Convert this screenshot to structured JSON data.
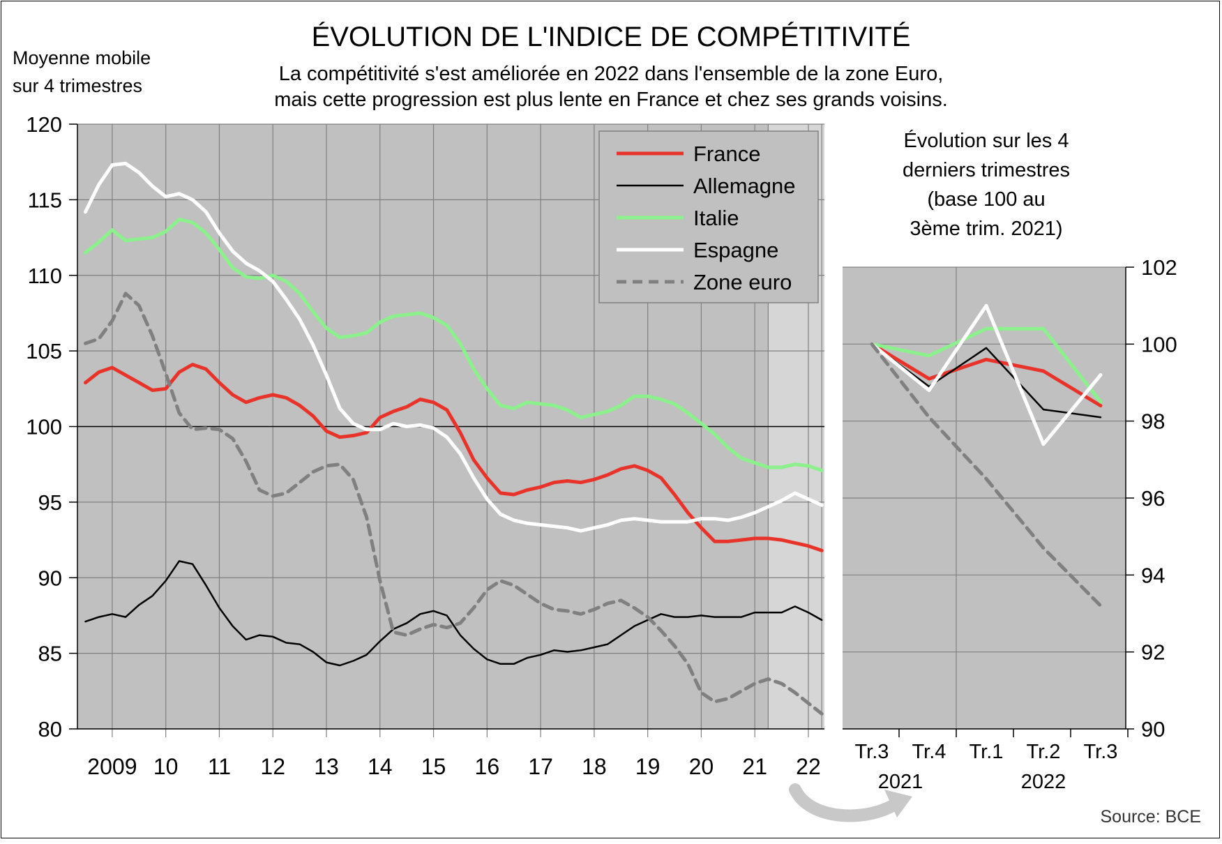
{
  "title": "ÉVOLUTION DE L'INDICE DE COMPÉTITIVITÉ",
  "subtitle_lines": [
    "La compétitivité s'est améliorée en 2022 dans l'ensemble de la zone Euro,",
    "mais cette progression est plus lente en France et chez ses grands voisins."
  ],
  "source": "Source: BCE",
  "chart_data": [
    {
      "type": "line",
      "ylabel_lines": [
        "Moyenne mobile",
        "sur 4 trimestres"
      ],
      "ylim": [
        80,
        120
      ],
      "yticks": [
        80,
        85,
        90,
        95,
        100,
        105,
        110,
        115,
        120
      ],
      "xlim": [
        2008.35,
        2022.3
      ],
      "year_ticks": [
        2009,
        2010,
        2011,
        2012,
        2013,
        2014,
        2015,
        2016,
        2017,
        2018,
        2019,
        2020,
        2021,
        2022
      ],
      "year_labels": [
        "2009",
        "10",
        "11",
        "12",
        "13",
        "14",
        "15",
        "16",
        "17",
        "18",
        "19",
        "20",
        "21",
        "22"
      ],
      "reference_line": 100,
      "grid": true,
      "legend_position": "top-right",
      "series": [
        {
          "name": "France",
          "color": "#e8332b",
          "style": "solid",
          "x": [
            2008.5,
            2008.75,
            2009.0,
            2009.25,
            2009.5,
            2009.75,
            2010.0,
            2010.25,
            2010.5,
            2010.75,
            2011.0,
            2011.25,
            2011.5,
            2011.75,
            2012.0,
            2012.25,
            2012.5,
            2012.75,
            2013.0,
            2013.25,
            2013.5,
            2013.75,
            2014.0,
            2014.25,
            2014.5,
            2014.75,
            2015.0,
            2015.25,
            2015.5,
            2015.75,
            2016.0,
            2016.25,
            2016.5,
            2016.75,
            2017.0,
            2017.25,
            2017.5,
            2017.75,
            2018.0,
            2018.25,
            2018.5,
            2018.75,
            2019.0,
            2019.25,
            2019.5,
            2019.75,
            2020.0,
            2020.25,
            2020.5,
            2020.75,
            2021.0,
            2021.25,
            2021.5,
            2021.75,
            2022.0,
            2022.25
          ],
          "y": [
            102.9,
            103.6,
            103.9,
            103.4,
            102.9,
            102.4,
            102.5,
            103.6,
            104.1,
            103.8,
            102.9,
            102.1,
            101.6,
            101.9,
            102.1,
            101.9,
            101.4,
            100.7,
            99.7,
            99.3,
            99.4,
            99.6,
            100.6,
            101.0,
            101.3,
            101.8,
            101.6,
            101.1,
            99.6,
            97.8,
            96.6,
            95.6,
            95.5,
            95.8,
            96.0,
            96.3,
            96.4,
            96.3,
            96.5,
            96.8,
            97.2,
            97.4,
            97.1,
            96.6,
            95.5,
            94.3,
            93.3,
            92.4,
            92.4,
            92.5,
            92.6,
            92.6,
            92.5,
            92.3,
            92.1,
            91.8
          ]
        },
        {
          "name": "Allemagne",
          "color": "#000000",
          "style": "solid",
          "x": [
            2008.5,
            2008.75,
            2009.0,
            2009.25,
            2009.5,
            2009.75,
            2010.0,
            2010.25,
            2010.5,
            2010.75,
            2011.0,
            2011.25,
            2011.5,
            2011.75,
            2012.0,
            2012.25,
            2012.5,
            2012.75,
            2013.0,
            2013.25,
            2013.5,
            2013.75,
            2014.0,
            2014.25,
            2014.5,
            2014.75,
            2015.0,
            2015.25,
            2015.5,
            2015.75,
            2016.0,
            2016.25,
            2016.5,
            2016.75,
            2017.0,
            2017.25,
            2017.5,
            2017.75,
            2018.0,
            2018.25,
            2018.5,
            2018.75,
            2019.0,
            2019.25,
            2019.5,
            2019.75,
            2020.0,
            2020.25,
            2020.5,
            2020.75,
            2021.0,
            2021.25,
            2021.5,
            2021.75,
            2022.0,
            2022.25
          ],
          "y": [
            87.1,
            87.4,
            87.6,
            87.4,
            88.2,
            88.8,
            89.8,
            91.1,
            90.9,
            89.5,
            88.0,
            86.8,
            85.9,
            86.2,
            86.1,
            85.7,
            85.6,
            85.1,
            84.4,
            84.2,
            84.5,
            84.9,
            85.8,
            86.6,
            87.0,
            87.6,
            87.8,
            87.5,
            86.2,
            85.3,
            84.6,
            84.3,
            84.3,
            84.7,
            84.9,
            85.2,
            85.1,
            85.2,
            85.4,
            85.6,
            86.2,
            86.8,
            87.2,
            87.6,
            87.4,
            87.4,
            87.5,
            87.4,
            87.4,
            87.4,
            87.7,
            87.7,
            87.7,
            88.1,
            87.7,
            87.2
          ]
        },
        {
          "name": "Italie",
          "color": "#8cf08c",
          "style": "solid",
          "x": [
            2008.5,
            2008.75,
            2009.0,
            2009.25,
            2009.5,
            2009.75,
            2010.0,
            2010.25,
            2010.5,
            2010.75,
            2011.0,
            2011.25,
            2011.5,
            2011.75,
            2012.0,
            2012.25,
            2012.5,
            2012.75,
            2013.0,
            2013.25,
            2013.5,
            2013.75,
            2014.0,
            2014.25,
            2014.5,
            2014.75,
            2015.0,
            2015.25,
            2015.5,
            2015.75,
            2016.0,
            2016.25,
            2016.5,
            2016.75,
            2017.0,
            2017.25,
            2017.5,
            2017.75,
            2018.0,
            2018.25,
            2018.5,
            2018.75,
            2019.0,
            2019.25,
            2019.5,
            2019.75,
            2020.0,
            2020.25,
            2020.5,
            2020.75,
            2021.0,
            2021.25,
            2021.5,
            2021.75,
            2022.0,
            2022.25
          ],
          "y": [
            111.5,
            112.2,
            113.0,
            112.3,
            112.4,
            112.5,
            112.9,
            113.7,
            113.5,
            112.8,
            111.7,
            110.5,
            109.9,
            109.8,
            110.0,
            109.6,
            108.8,
            107.6,
            106.5,
            105.9,
            106.0,
            106.2,
            106.9,
            107.3,
            107.4,
            107.5,
            107.2,
            106.7,
            105.5,
            103.8,
            102.5,
            101.4,
            101.2,
            101.6,
            101.5,
            101.4,
            101.1,
            100.6,
            100.8,
            101.0,
            101.4,
            102.0,
            102.0,
            101.8,
            101.5,
            100.9,
            100.2,
            99.5,
            98.6,
            97.9,
            97.6,
            97.3,
            97.3,
            97.5,
            97.4,
            97.1
          ]
        },
        {
          "name": "Espagne",
          "color": "#ffffff",
          "style": "solid",
          "x": [
            2008.5,
            2008.75,
            2009.0,
            2009.25,
            2009.5,
            2009.75,
            2010.0,
            2010.25,
            2010.5,
            2010.75,
            2011.0,
            2011.25,
            2011.5,
            2011.75,
            2012.0,
            2012.25,
            2012.5,
            2012.75,
            2013.0,
            2013.25,
            2013.5,
            2013.75,
            2014.0,
            2014.25,
            2014.5,
            2014.75,
            2015.0,
            2015.25,
            2015.5,
            2015.75,
            2016.0,
            2016.25,
            2016.5,
            2016.75,
            2017.0,
            2017.25,
            2017.5,
            2017.75,
            2018.0,
            2018.25,
            2018.5,
            2018.75,
            2019.0,
            2019.25,
            2019.5,
            2019.75,
            2020.0,
            2020.25,
            2020.5,
            2020.75,
            2021.0,
            2021.25,
            2021.5,
            2021.75,
            2022.0,
            2022.25
          ],
          "y": [
            114.2,
            116.0,
            117.3,
            117.4,
            116.8,
            115.9,
            115.2,
            115.4,
            115.0,
            114.2,
            112.8,
            111.6,
            110.8,
            110.3,
            109.6,
            108.4,
            107.1,
            105.4,
            103.4,
            101.2,
            100.2,
            99.8,
            99.8,
            100.2,
            100.0,
            100.1,
            99.9,
            99.3,
            98.2,
            96.6,
            95.2,
            94.2,
            93.8,
            93.6,
            93.5,
            93.4,
            93.3,
            93.1,
            93.3,
            93.5,
            93.8,
            93.9,
            93.8,
            93.7,
            93.7,
            93.7,
            93.9,
            93.9,
            93.8,
            94.0,
            94.3,
            94.7,
            95.1,
            95.6,
            95.2,
            94.8
          ]
        },
        {
          "name": "Zone euro",
          "color": "#808080",
          "style": "dashed",
          "x": [
            2008.5,
            2008.75,
            2009.0,
            2009.25,
            2009.5,
            2009.75,
            2010.0,
            2010.25,
            2010.5,
            2010.75,
            2011.0,
            2011.25,
            2011.5,
            2011.75,
            2012.0,
            2012.25,
            2012.5,
            2012.75,
            2013.0,
            2013.25,
            2013.5,
            2013.75,
            2014.0,
            2014.25,
            2014.5,
            2014.75,
            2015.0,
            2015.25,
            2015.5,
            2015.75,
            2016.0,
            2016.25,
            2016.5,
            2016.75,
            2017.0,
            2017.25,
            2017.5,
            2017.75,
            2018.0,
            2018.25,
            2018.5,
            2018.75,
            2019.0,
            2019.25,
            2019.5,
            2019.75,
            2020.0,
            2020.25,
            2020.5,
            2020.75,
            2021.0,
            2021.25,
            2021.5,
            2021.75,
            2022.0,
            2022.25
          ],
          "y": [
            105.5,
            105.8,
            107.0,
            108.8,
            108.0,
            106.0,
            103.5,
            100.9,
            99.8,
            99.9,
            99.8,
            99.2,
            97.7,
            95.8,
            95.4,
            95.6,
            96.3,
            97.0,
            97.4,
            97.5,
            96.5,
            94.0,
            89.8,
            86.4,
            86.2,
            86.6,
            86.9,
            86.7,
            87.0,
            88.0,
            89.2,
            89.8,
            89.5,
            88.9,
            88.3,
            87.9,
            87.8,
            87.6,
            87.9,
            88.3,
            88.5,
            88.0,
            87.4,
            86.5,
            85.5,
            84.3,
            82.4,
            81.8,
            82.0,
            82.5,
            83.0,
            83.3,
            83.0,
            82.4,
            81.7,
            81.0
          ]
        }
      ]
    },
    {
      "type": "line",
      "title_lines": [
        "Évolution sur les 4",
        "derniers trimestres",
        "(base 100 au",
        "3ème trim. 2021)"
      ],
      "ylim": [
        90,
        102
      ],
      "yticks": [
        90,
        92,
        94,
        96,
        98,
        100,
        102
      ],
      "categories": [
        "Tr.3",
        "Tr.4",
        "Tr.1",
        "Tr.2",
        "Tr.3"
      ],
      "year_groups": [
        {
          "label": "2021",
          "from": 0,
          "to": 1
        },
        {
          "label": "2022",
          "from": 2,
          "to": 4
        }
      ],
      "grid": true,
      "series": [
        {
          "name": "France",
          "color": "#e8332b",
          "style": "solid",
          "values": [
            100.0,
            99.1,
            99.6,
            99.3,
            98.4
          ]
        },
        {
          "name": "Allemagne",
          "color": "#000000",
          "style": "solid",
          "values": [
            100.0,
            98.9,
            99.9,
            98.3,
            98.1
          ]
        },
        {
          "name": "Italie",
          "color": "#8cf08c",
          "style": "solid",
          "values": [
            100.0,
            99.7,
            100.4,
            100.4,
            98.5
          ]
        },
        {
          "name": "Espagne",
          "color": "#ffffff",
          "style": "solid",
          "values": [
            100.0,
            98.8,
            101.0,
            97.4,
            99.2
          ]
        },
        {
          "name": "Zone euro",
          "color": "#808080",
          "style": "dashed",
          "values": [
            100.0,
            98.1,
            96.5,
            94.7,
            93.2
          ]
        }
      ]
    }
  ]
}
